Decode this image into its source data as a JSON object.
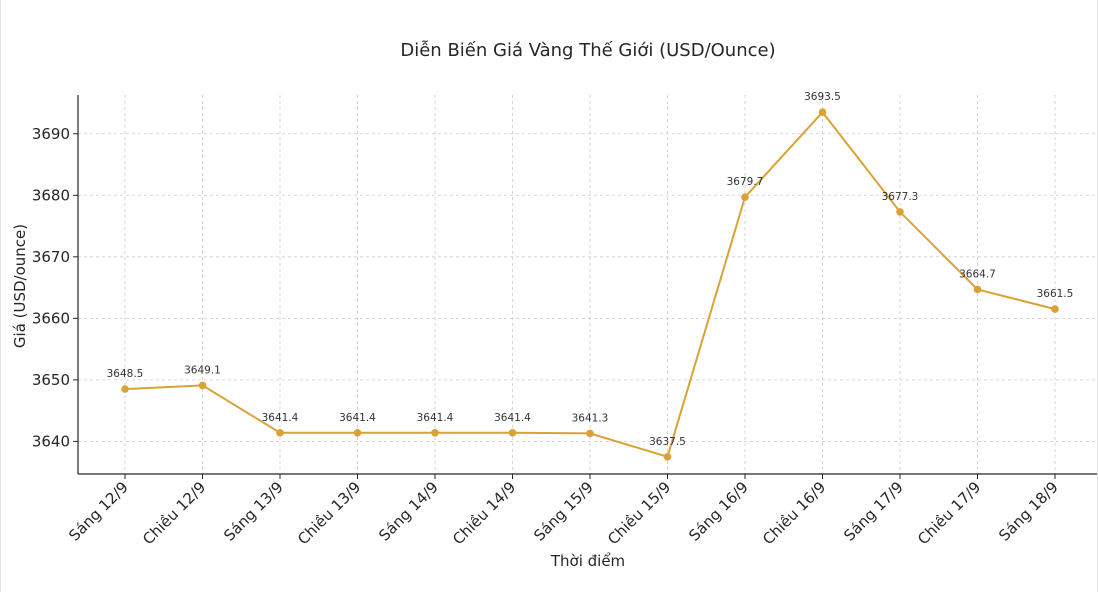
{
  "chart_data": {
    "type": "line",
    "title": "Diễn Biến Giá Vàng Thế Giới (USD/Ounce)",
    "xlabel": "Thời điểm",
    "ylabel": "Giá (USD/ounce)",
    "categories": [
      "Sáng 12/9",
      "Chiều 12/9",
      "Sáng 13/9",
      "Chiều 13/9",
      "Sáng 14/9",
      "Chiều 14/9",
      "Sáng 15/9",
      "Chiều 15/9",
      "Sáng 16/9",
      "Chiều 16/9",
      "Sáng 17/9",
      "Chiều 17/9",
      "Sáng 18/9"
    ],
    "series": [
      {
        "values": [
          3648.5,
          3649.1,
          3641.4,
          3641.4,
          3641.4,
          3641.4,
          3641.3,
          3637.5,
          3679.7,
          3693.5,
          3677.3,
          3664.7,
          3661.5
        ],
        "color": "#DAA235"
      }
    ],
    "yticks": [
      3640,
      3650,
      3660,
      3670,
      3680,
      3690
    ],
    "ylim": [
      3634.7,
      3696.3
    ],
    "grid": true,
    "data_labels": true
  }
}
